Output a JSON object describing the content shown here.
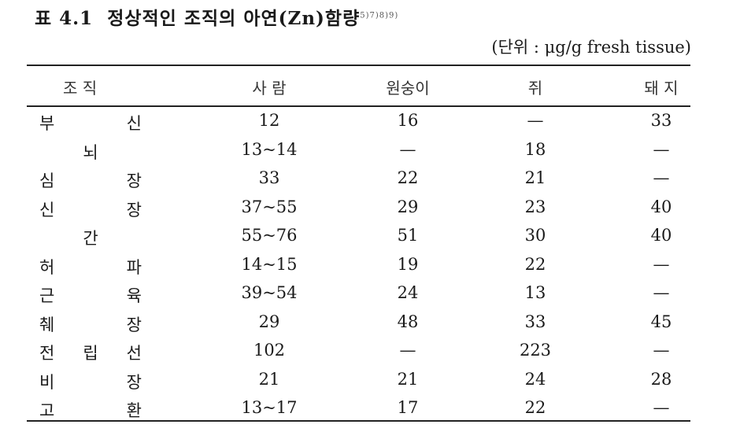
{
  "title": {
    "label": "표 4.1",
    "text": "정상적인 조직의 아연(Zn)함량",
    "refs": "5)7)8)9)"
  },
  "unit": "(단위 : μg/g fresh tissue)",
  "table": {
    "headers": [
      "조 직",
      "사 람",
      "원숭이",
      "쥐",
      "돼 지"
    ],
    "rows": [
      [
        "부 신",
        "12",
        "16",
        "—",
        "33"
      ],
      [
        "뇌",
        "13~14",
        "—",
        "18",
        "—"
      ],
      [
        "심 장",
        "33",
        "22",
        "21",
        "—"
      ],
      [
        "신 장",
        "37~55",
        "29",
        "23",
        "40"
      ],
      [
        "간",
        "55~76",
        "51",
        "30",
        "40"
      ],
      [
        "허 파",
        "14~15",
        "19",
        "22",
        "—"
      ],
      [
        "근 육",
        "39~54",
        "24",
        "13",
        "—"
      ],
      [
        "췌 장",
        "29",
        "48",
        "33",
        "45"
      ],
      [
        "전 립 선",
        "102",
        "—",
        "223",
        "—"
      ],
      [
        "비 장",
        "21",
        "21",
        "24",
        "28"
      ],
      [
        "고 환",
        "13~17",
        "17",
        "22",
        "—"
      ]
    ]
  }
}
